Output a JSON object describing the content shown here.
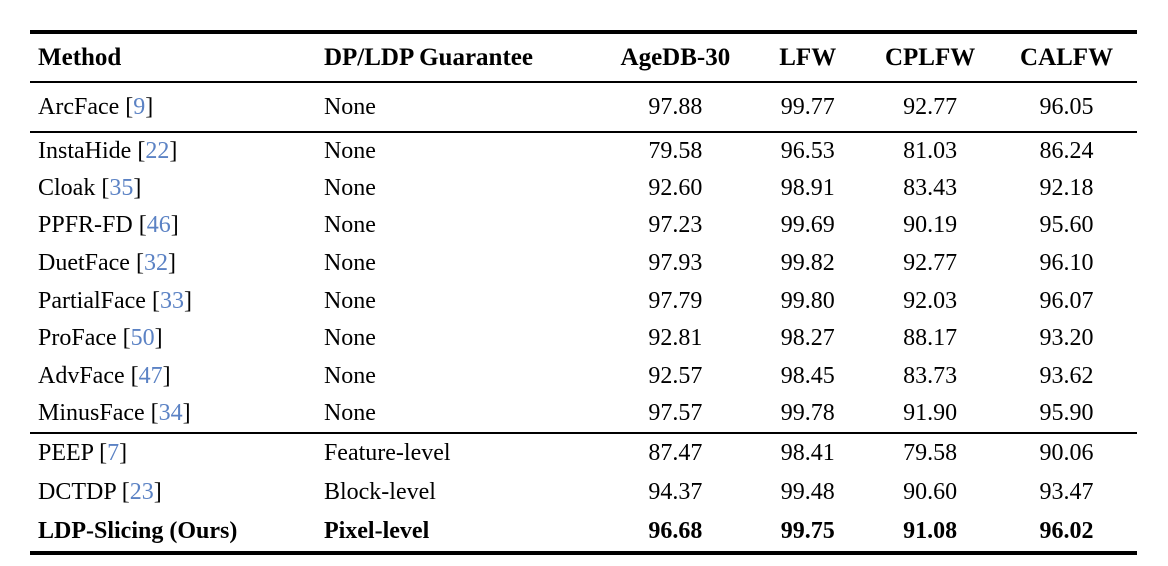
{
  "colors": {
    "text": "#000000",
    "rule": "#000000",
    "citation_link": "#5b82c4",
    "background": "#ffffff"
  },
  "table": {
    "columns": [
      {
        "label": "Method",
        "align": "left"
      },
      {
        "label": "DP/LDP Guarantee",
        "align": "left"
      },
      {
        "label": "AgeDB-30",
        "align": "center"
      },
      {
        "label": "LFW",
        "align": "center"
      },
      {
        "label": "CPLFW",
        "align": "center"
      },
      {
        "label": "CALFW",
        "align": "center"
      }
    ],
    "sections": [
      {
        "name": "baseline",
        "rows": [
          {
            "method": "ArcFace",
            "citation": "9",
            "guarantee": "None",
            "values": [
              "97.88",
              "99.77",
              "92.77",
              "96.05"
            ],
            "bold": false
          }
        ]
      },
      {
        "name": "no-guarantee-methods",
        "rows": [
          {
            "method": "InstaHide",
            "citation": "22",
            "guarantee": "None",
            "values": [
              "79.58",
              "96.53",
              "81.03",
              "86.24"
            ],
            "bold": false
          },
          {
            "method": "Cloak",
            "citation": "35",
            "guarantee": "None",
            "values": [
              "92.60",
              "98.91",
              "83.43",
              "92.18"
            ],
            "bold": false
          },
          {
            "method": "PPFR-FD",
            "citation": "46",
            "guarantee": "None",
            "values": [
              "97.23",
              "99.69",
              "90.19",
              "95.60"
            ],
            "bold": false
          },
          {
            "method": "DuetFace",
            "citation": "32",
            "guarantee": "None",
            "values": [
              "97.93",
              "99.82",
              "92.77",
              "96.10"
            ],
            "bold": false
          },
          {
            "method": "PartialFace",
            "citation": "33",
            "guarantee": "None",
            "values": [
              "97.79",
              "99.80",
              "92.03",
              "96.07"
            ],
            "bold": false
          },
          {
            "method": "ProFace",
            "citation": "50",
            "guarantee": "None",
            "values": [
              "92.81",
              "98.27",
              "88.17",
              "93.20"
            ],
            "bold": false
          },
          {
            "method": "AdvFace",
            "citation": "47",
            "guarantee": "None",
            "values": [
              "92.57",
              "98.45",
              "83.73",
              "93.62"
            ],
            "bold": false
          },
          {
            "method": "MinusFace",
            "citation": "34",
            "guarantee": "None",
            "values": [
              "97.57",
              "99.78",
              "91.90",
              "95.90"
            ],
            "bold": false
          }
        ]
      },
      {
        "name": "dp-ldp-methods",
        "rows": [
          {
            "method": "PEEP",
            "citation": "7",
            "guarantee": "Feature-level",
            "values": [
              "87.47",
              "98.41",
              "79.58",
              "90.06"
            ],
            "bold": false
          },
          {
            "method": "DCTDP",
            "citation": "23",
            "guarantee": "Block-level",
            "values": [
              "94.37",
              "99.48",
              "90.60",
              "93.47"
            ],
            "bold": false
          },
          {
            "method": "LDP-Slicing (Ours)",
            "citation": null,
            "guarantee": "Pixel-level",
            "values": [
              "96.68",
              "99.75",
              "91.08",
              "96.02"
            ],
            "bold": true
          }
        ]
      }
    ]
  }
}
